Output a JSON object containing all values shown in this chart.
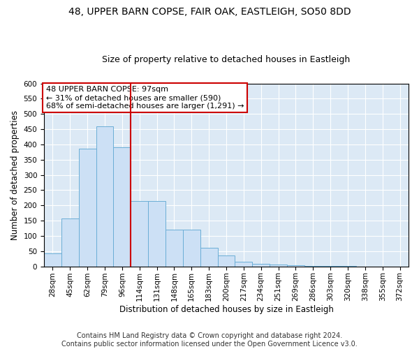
{
  "title1": "48, UPPER BARN COPSE, FAIR OAK, EASTLEIGH, SO50 8DD",
  "title2": "Size of property relative to detached houses in Eastleigh",
  "xlabel": "Distribution of detached houses by size in Eastleigh",
  "ylabel": "Number of detached properties",
  "footer1": "Contains HM Land Registry data © Crown copyright and database right 2024.",
  "footer2": "Contains public sector information licensed under the Open Government Licence v3.0.",
  "annotation_line1": "48 UPPER BARN COPSE: 97sqm",
  "annotation_line2": "← 31% of detached houses are smaller (590)",
  "annotation_line3": "68% of semi-detached houses are larger (1,291) →",
  "bar_labels": [
    "28sqm",
    "45sqm",
    "62sqm",
    "79sqm",
    "96sqm",
    "114sqm",
    "131sqm",
    "148sqm",
    "165sqm",
    "183sqm",
    "200sqm",
    "217sqm",
    "234sqm",
    "251sqm",
    "269sqm",
    "286sqm",
    "303sqm",
    "320sqm",
    "338sqm",
    "355sqm",
    "372sqm"
  ],
  "bar_values": [
    42,
    158,
    385,
    460,
    390,
    215,
    215,
    120,
    120,
    62,
    35,
    15,
    8,
    5,
    3,
    2,
    1,
    1,
    0,
    0,
    0
  ],
  "bar_color": "#cce0f5",
  "bar_edge_color": "#6baed6",
  "vline_color": "#cc0000",
  "vline_pos": 4.5,
  "annotation_box_bg": "#ffffff",
  "annotation_box_edge": "#cc0000",
  "ylim": [
    0,
    600
  ],
  "yticks": [
    0,
    50,
    100,
    150,
    200,
    250,
    300,
    350,
    400,
    450,
    500,
    550,
    600
  ],
  "background_color": "#dce9f5",
  "fig_background": "#ffffff",
  "title_fontsize": 10,
  "subtitle_fontsize": 9,
  "axis_label_fontsize": 8.5,
  "tick_fontsize": 7.5,
  "annotation_fontsize": 8,
  "footer_fontsize": 7
}
